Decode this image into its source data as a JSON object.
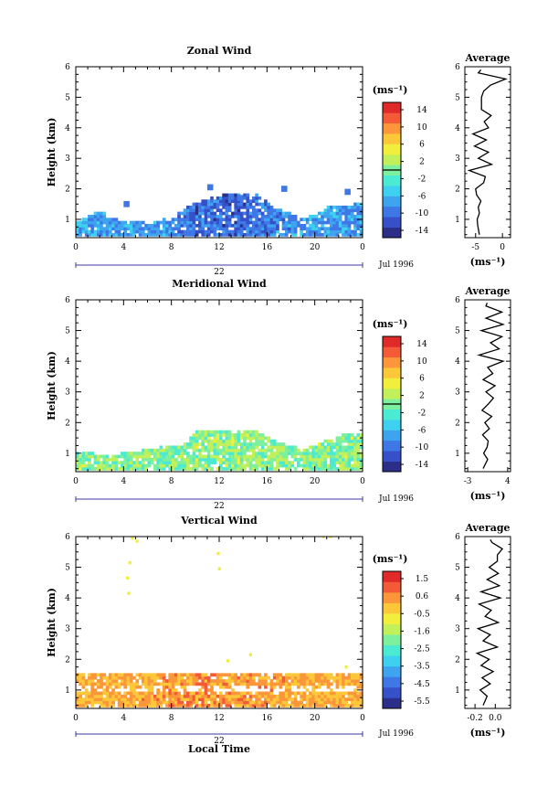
{
  "x_axis": {
    "ticks": [
      "0",
      "4",
      "8",
      "12",
      "16",
      "20",
      "0"
    ],
    "date_label": "22",
    "month_label": "Jul 1996",
    "xlabel": "Local Time"
  },
  "colors": {
    "rainbow": [
      "#2b2f8a",
      "#3550c8",
      "#3f78e6",
      "#3ea4f0",
      "#3ed0ef",
      "#4bead2",
      "#7cf09c",
      "#c2f05a",
      "#f2ee3c",
      "#fcc83a",
      "#fb963a",
      "#f45a38",
      "#e02a2a"
    ]
  },
  "chart_data": [
    {
      "type": "heatmap",
      "title": "Zonal Wind",
      "ylabel": "Height (km)",
      "xlim": [
        0,
        24
      ],
      "ylim": [
        0.4,
        6
      ],
      "yticks": [
        "1",
        "2",
        "3",
        "4",
        "5",
        "6"
      ],
      "colorbar": {
        "unit": "(ms⁻¹)",
        "ticks": [
          "14",
          "10",
          "6",
          "2",
          "-2",
          "-6",
          "-10",
          "-14"
        ],
        "range": [
          -16,
          16
        ],
        "zero_line": true
      },
      "field": {
        "cover": [
          [
            0,
            0.9
          ],
          [
            2,
            1.25
          ],
          [
            3.5,
            0.9
          ],
          [
            6,
            0.85
          ],
          [
            8,
            1.05
          ],
          [
            10,
            1.55
          ],
          [
            13,
            1.85
          ],
          [
            15,
            1.8
          ],
          [
            16.5,
            1.35
          ],
          [
            19,
            1.0
          ],
          [
            21,
            1.4
          ],
          [
            23,
            1.45
          ],
          [
            24,
            1.5
          ]
        ],
        "range_at_time": [
          [
            0,
            -10,
            -4
          ],
          [
            8,
            -11,
            -6
          ],
          [
            10,
            -14,
            -7
          ],
          [
            14,
            -14,
            -8
          ],
          [
            18,
            -11,
            -5
          ],
          [
            22,
            -11,
            -5
          ],
          [
            24,
            -11,
            -5
          ]
        ]
      },
      "average_profile": {
        "title": "Average",
        "xlabel": "(ms⁻¹)",
        "xticks": [
          "-5",
          "0"
        ],
        "xlim": [
          -7,
          1.5
        ],
        "height": [
          0.5,
          0.8,
          1.0,
          1.2,
          1.4,
          1.6,
          1.8,
          2.0,
          2.2,
          2.4,
          2.6,
          2.8,
          3.0,
          3.2,
          3.4,
          3.6,
          3.8,
          4.0,
          4.2,
          4.4,
          4.6,
          4.8,
          5.0,
          5.2,
          5.4,
          5.6,
          5.8,
          5.9
        ],
        "value": [
          -4.3,
          -4.6,
          -4.7,
          -4.3,
          -4.5,
          -4.0,
          -4.8,
          -5.0,
          -3.5,
          -3.2,
          -6.2,
          -2.0,
          -4.5,
          -2.6,
          -5.2,
          -3.0,
          -5.5,
          -2.6,
          -3.4,
          -2.1,
          -3.9,
          -3.9,
          -3.9,
          -3.5,
          -2.2,
          0.6,
          -4.5,
          -4.0
        ]
      }
    },
    {
      "type": "heatmap",
      "title": "Meridional Wind",
      "ylabel": "Height (km)",
      "xlim": [
        0,
        24
      ],
      "ylim": [
        0.4,
        6
      ],
      "yticks": [
        "1",
        "2",
        "3",
        "4",
        "5",
        "6"
      ],
      "colorbar": {
        "unit": "(ms⁻¹)",
        "ticks": [
          "14",
          "10",
          "6",
          "2",
          "-2",
          "-6",
          "-10",
          "-14"
        ],
        "range": [
          -16,
          16
        ],
        "zero_line": true
      },
      "field": {
        "cover": [
          [
            0,
            1.0
          ],
          [
            3,
            0.9
          ],
          [
            6,
            1.1
          ],
          [
            9,
            1.3
          ],
          [
            10,
            1.7
          ],
          [
            13,
            1.75
          ],
          [
            15,
            1.7
          ],
          [
            17,
            1.3
          ],
          [
            19,
            1.1
          ],
          [
            21,
            1.4
          ],
          [
            23,
            1.65
          ],
          [
            24,
            1.6
          ]
        ],
        "range_at_time": [
          [
            0,
            -3,
            4
          ],
          [
            8,
            -3,
            3
          ],
          [
            12,
            -3,
            5
          ],
          [
            16,
            -3,
            3
          ],
          [
            20,
            -3,
            4
          ],
          [
            24,
            -3,
            4
          ]
        ]
      },
      "average_profile": {
        "title": "Average",
        "xlabel": "(ms⁻¹)",
        "xticks": [
          "-3",
          "4"
        ],
        "xlim": [
          -3.5,
          4.5
        ],
        "height": [
          0.5,
          0.8,
          1.0,
          1.2,
          1.4,
          1.6,
          1.8,
          2.0,
          2.2,
          2.4,
          2.6,
          2.8,
          3.0,
          3.2,
          3.4,
          3.6,
          3.8,
          4.0,
          4.2,
          4.4,
          4.6,
          4.8,
          5.0,
          5.2,
          5.4,
          5.6,
          5.8,
          5.9
        ],
        "value": [
          -0.3,
          0.5,
          -0.2,
          0.4,
          0.6,
          -0.4,
          0.8,
          0.0,
          1.2,
          -0.5,
          0.6,
          1.5,
          0.2,
          1.8,
          -0.3,
          1.4,
          0.5,
          3.2,
          -1.0,
          2.5,
          1.0,
          3.0,
          -0.6,
          3.2,
          0.2,
          3.0,
          0.2,
          0.4
        ]
      }
    },
    {
      "type": "heatmap",
      "title": "Vertical Wind",
      "ylabel": "Height (km)",
      "xlim": [
        0,
        24
      ],
      "ylim": [
        0.4,
        6
      ],
      "yticks": [
        "1",
        "2",
        "3",
        "4",
        "5",
        "6"
      ],
      "colorbar": {
        "unit": "(ms⁻¹)",
        "ticks": [
          "1.5",
          "0.6",
          "-0.5",
          "-1.6",
          "-2.5",
          "-3.5",
          "-4.5",
          "-5.5"
        ],
        "range": [
          -6,
          2
        ],
        "zero_line": false
      },
      "field": {
        "cover": [
          [
            0,
            1.5
          ],
          [
            24,
            1.5
          ]
        ],
        "range_at_time": [
          [
            0,
            -0.3,
            0.4
          ],
          [
            10,
            -0.2,
            1.2
          ],
          [
            14,
            -0.2,
            1.0
          ],
          [
            24,
            -0.3,
            0.4
          ]
        ]
      },
      "average_profile": {
        "title": "Average",
        "xlabel": "(ms⁻¹)",
        "xticks": [
          "-0.2",
          "0.0"
        ],
        "xlim": [
          -0.3,
          0.15
        ],
        "height": [
          0.5,
          0.8,
          1.0,
          1.2,
          1.4,
          1.6,
          1.8,
          2.0,
          2.2,
          2.4,
          2.6,
          2.8,
          3.0,
          3.2,
          3.4,
          3.6,
          3.8,
          4.0,
          4.2,
          4.4,
          4.6,
          4.8,
          5.0,
          5.2,
          5.4,
          5.6,
          5.8,
          5.9
        ],
        "value": [
          -0.12,
          -0.08,
          -0.15,
          -0.05,
          -0.13,
          -0.02,
          -0.14,
          -0.06,
          -0.18,
          0.02,
          -0.12,
          -0.05,
          -0.17,
          0.03,
          -0.1,
          -0.04,
          -0.16,
          0.05,
          -0.14,
          0.04,
          -0.08,
          0.03,
          -0.06,
          0.02,
          0.02,
          0.07,
          -0.03,
          -0.05
        ]
      }
    }
  ]
}
